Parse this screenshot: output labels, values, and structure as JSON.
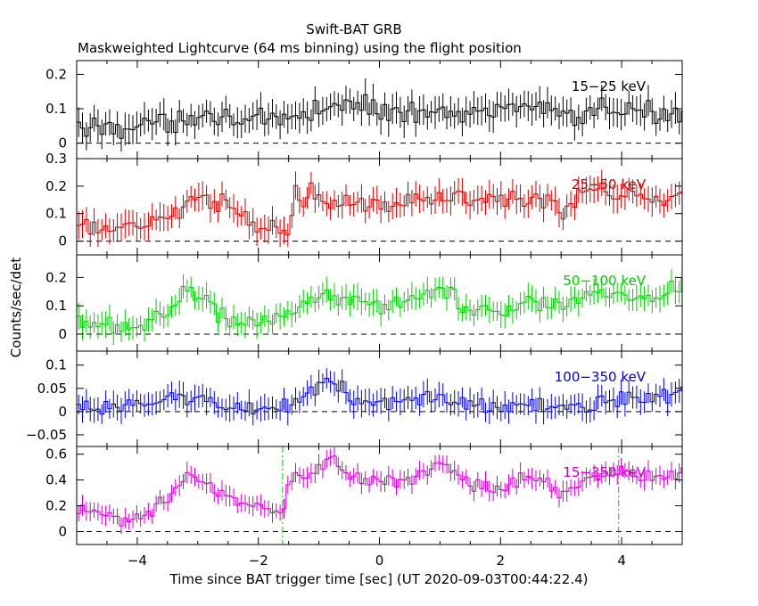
{
  "title": "Swift-BAT GRB",
  "subtitle": "Maskweighted Lightcurve (64 ms binning) using the flight position",
  "chart_data": {
    "type": "line",
    "title": "Swift-BAT GRB",
    "subtitle": "Maskweighted Lightcurve (64 ms binning) using the flight position",
    "xlabel": "Time since BAT trigger time [sec] (UT 2020-09-03T00:44:22.4)",
    "ylabel": "Counts/sec/det",
    "xlim": [
      -5,
      5
    ],
    "xticks": [
      -4,
      -2,
      0,
      2,
      4
    ],
    "xtick_labels": [
      "−4",
      "−2",
      "0",
      "2",
      "4"
    ],
    "bin_width_s": 0.064,
    "vlines": [
      -1.6,
      3.95
    ],
    "panels": [
      {
        "band": "15−25 keV",
        "color": "#000000",
        "ylim": [
          -0.045,
          0.24
        ],
        "yticks": [
          0,
          0.1,
          0.2
        ],
        "ytick_labels": [
          "0",
          "0.1",
          "0.2"
        ],
        "mean_trend": [
          [
            -5,
            0.04
          ],
          [
            -4.5,
            0.05
          ],
          [
            -4,
            0.05
          ],
          [
            -3.5,
            0.06
          ],
          [
            -3,
            0.08
          ],
          [
            -2.5,
            0.08
          ],
          [
            -2,
            0.06
          ],
          [
            -1.5,
            0.06
          ],
          [
            -1,
            0.1
          ],
          [
            -0.5,
            0.11
          ],
          [
            0,
            0.1
          ],
          [
            0.5,
            0.09
          ],
          [
            1,
            0.1
          ],
          [
            1.5,
            0.08
          ],
          [
            2,
            0.11
          ],
          [
            2.5,
            0.1
          ],
          [
            3,
            0.08
          ],
          [
            3.5,
            0.09
          ],
          [
            4,
            0.1
          ],
          [
            4.5,
            0.08
          ],
          [
            5,
            0.09
          ]
        ],
        "err": 0.04
      },
      {
        "band": "25−50 keV",
        "color": "#cc0000",
        "ylim": [
          -0.05,
          0.3
        ],
        "yticks": [
          0,
          0.1,
          0.2,
          0.3
        ],
        "ytick_labels": [
          "0",
          "0.1",
          "0.2",
          "0.3"
        ],
        "mean_trend": [
          [
            -5,
            0.05
          ],
          [
            -4.5,
            0.05
          ],
          [
            -4,
            0.04
          ],
          [
            -3.5,
            0.1
          ],
          [
            -3,
            0.15
          ],
          [
            -2.5,
            0.14
          ],
          [
            -2,
            0.06
          ],
          [
            -1.5,
            0.05
          ],
          [
            -1.4,
            0.17
          ],
          [
            -1,
            0.16
          ],
          [
            -0.5,
            0.15
          ],
          [
            0,
            0.13
          ],
          [
            0.5,
            0.15
          ],
          [
            1,
            0.18
          ],
          [
            1.5,
            0.15
          ],
          [
            2,
            0.14
          ],
          [
            2.5,
            0.16
          ],
          [
            3,
            0.1
          ],
          [
            3.5,
            0.18
          ],
          [
            4,
            0.17
          ],
          [
            4.5,
            0.15
          ],
          [
            5,
            0.17
          ]
        ],
        "err": 0.045
      },
      {
        "band": "50−100 keV",
        "color": "#00cc00",
        "ylim": [
          -0.06,
          0.28
        ],
        "yticks": [
          0,
          0.1,
          0.2
        ],
        "ytick_labels": [
          "0",
          "0.1",
          "0.2"
        ],
        "mean_trend": [
          [
            -5,
            0.04
          ],
          [
            -4.5,
            0.03
          ],
          [
            -4,
            0.03
          ],
          [
            -3.5,
            0.07
          ],
          [
            -3.2,
            0.18
          ],
          [
            -3,
            0.14
          ],
          [
            -2.5,
            0.05
          ],
          [
            -2,
            0.04
          ],
          [
            -1.5,
            0.08
          ],
          [
            -1,
            0.13
          ],
          [
            -0.5,
            0.12
          ],
          [
            0,
            0.1
          ],
          [
            0.5,
            0.12
          ],
          [
            1,
            0.17
          ],
          [
            1.5,
            0.09
          ],
          [
            2,
            0.08
          ],
          [
            2.5,
            0.12
          ],
          [
            3,
            0.11
          ],
          [
            3.5,
            0.13
          ],
          [
            4,
            0.14
          ],
          [
            4.5,
            0.11
          ],
          [
            5,
            0.18
          ]
        ],
        "err": 0.04
      },
      {
        "band": "100−350 keV",
        "color": "#0000cc",
        "ylim": [
          -0.075,
          0.13
        ],
        "yticks": [
          -0.05,
          0,
          0.05,
          0.1
        ],
        "ytick_labels": [
          "−0.05",
          "0",
          "0.05",
          "0.1"
        ],
        "mean_trend": [
          [
            -5,
            0.01
          ],
          [
            -4.5,
            0.0
          ],
          [
            -4,
            0.02
          ],
          [
            -3.5,
            0.03
          ],
          [
            -3,
            0.03
          ],
          [
            -2.5,
            0.01
          ],
          [
            -2,
            0.0
          ],
          [
            -1.5,
            0.02
          ],
          [
            -1,
            0.05
          ],
          [
            -0.8,
            0.07
          ],
          [
            -0.5,
            0.03
          ],
          [
            0,
            0.01
          ],
          [
            0.5,
            0.02
          ],
          [
            1,
            0.04
          ],
          [
            1.5,
            0.02
          ],
          [
            2,
            0.01
          ],
          [
            2.5,
            0.02
          ],
          [
            3,
            0.01
          ],
          [
            3.5,
            0.02
          ],
          [
            4,
            0.03
          ],
          [
            4.5,
            0.03
          ],
          [
            5,
            0.04
          ]
        ],
        "err": 0.025
      },
      {
        "band": "15−350 keV",
        "color": "#cc00cc",
        "ylim": [
          -0.1,
          0.66
        ],
        "yticks": [
          0,
          0.2,
          0.4,
          0.6
        ],
        "ytick_labels": [
          "0",
          "0.2",
          "0.4",
          "0.6"
        ],
        "mean_trend": [
          [
            -5,
            0.15
          ],
          [
            -4.5,
            0.12
          ],
          [
            -4,
            0.1
          ],
          [
            -3.5,
            0.25
          ],
          [
            -3.2,
            0.45
          ],
          [
            -3,
            0.42
          ],
          [
            -2.5,
            0.25
          ],
          [
            -2,
            0.18
          ],
          [
            -1.6,
            0.15
          ],
          [
            -1.5,
            0.4
          ],
          [
            -1,
            0.5
          ],
          [
            -0.8,
            0.6
          ],
          [
            -0.5,
            0.42
          ],
          [
            0,
            0.38
          ],
          [
            0.5,
            0.42
          ],
          [
            1,
            0.55
          ],
          [
            1.5,
            0.38
          ],
          [
            2,
            0.3
          ],
          [
            2.5,
            0.45
          ],
          [
            3,
            0.3
          ],
          [
            3.5,
            0.42
          ],
          [
            4,
            0.45
          ],
          [
            4.5,
            0.4
          ],
          [
            5,
            0.5
          ]
        ],
        "err": 0.07
      }
    ]
  }
}
